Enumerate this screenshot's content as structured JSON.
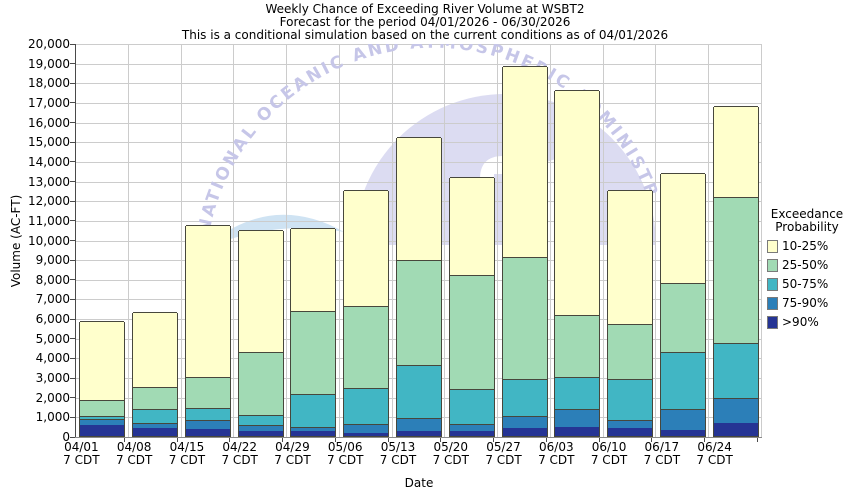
{
  "header": {
    "title_line1": "Weekly Chance of Exceeding River Volume at WSBT2",
    "title_line2": "Forecast for the period 04/01/2026 - 06/30/2026",
    "title_line3": "This is a conditional simulation based on the current conditions as of 04/01/2026"
  },
  "axes": {
    "y_label": "Volume (AC-FT)",
    "x_label": "Date",
    "y_tick_labels": [
      "0",
      "1,000",
      "2,000",
      "3,000",
      "4,000",
      "5,000",
      "6,000",
      "7,000",
      "8,000",
      "9,000",
      "10,000",
      "11,000",
      "12,000",
      "13,000",
      "14,000",
      "15,000",
      "16,000",
      "17,000",
      "18,000",
      "19,000",
      "20,000"
    ]
  },
  "legend": {
    "title_line1": "Exceedance",
    "title_line2": "Probability",
    "items": [
      {
        "label": "10-25%",
        "color": "#FFFFCC"
      },
      {
        "label": "25-50%",
        "color": "#A1DAB4"
      },
      {
        "label": "50-75%",
        "color": "#41B6C4"
      },
      {
        "label": "75-90%",
        "color": "#2C7FB8"
      },
      {
        "label": ">90%",
        "color": "#253494"
      }
    ]
  },
  "watermark": {
    "arc_text": "NATIONAL OCEANIC AND ATMOSPHERIC ADMINISTRATION",
    "arc_color": "#c6c6e8",
    "dome_color": "#dcdcf2",
    "wave_color": "#cfe3f3"
  },
  "chart_data": {
    "type": "bar",
    "stacked": true,
    "title": "Weekly Chance of Exceeding River Volume at WSBT2",
    "xlabel": "Date",
    "ylabel": "Volume (AC-FT)",
    "ylim": [
      0,
      20000
    ],
    "y_step": 1000,
    "grid": true,
    "legend_position": "right",
    "categories": [
      "04/01",
      "04/08",
      "04/15",
      "04/22",
      "04/29",
      "05/06",
      "05/13",
      "05/20",
      "05/27",
      "06/03",
      "06/10",
      "06/17",
      "06/24"
    ],
    "tick_sublabel": "7 CDT",
    "series": [
      {
        "name": ">90%",
        "color": "#253494",
        "values": [
          550,
          400,
          350,
          250,
          270,
          175,
          250,
          230,
          400,
          450,
          400,
          300,
          650
        ]
      },
      {
        "name": "75-90%",
        "color": "#2C7FB8",
        "values": [
          300,
          250,
          450,
          300,
          180,
          415,
          650,
          370,
          600,
          950,
          400,
          1100,
          1300
        ]
      },
      {
        "name": "50-75%",
        "color": "#41B6C4",
        "values": [
          150,
          720,
          650,
          500,
          1700,
          1840,
          2700,
          1800,
          1900,
          1600,
          2100,
          2900,
          2780
        ]
      },
      {
        "name": "25-50%",
        "color": "#A1DAB4",
        "values": [
          850,
          1130,
          1550,
          3250,
          4200,
          4170,
          5350,
          5800,
          6200,
          3150,
          2800,
          3500,
          7420
        ]
      },
      {
        "name": "10-25%",
        "color": "#FFFFCC",
        "values": [
          4000,
          3800,
          7750,
          6200,
          4250,
          5900,
          6250,
          5000,
          9750,
          11450,
          6800,
          5600,
          4650
        ]
      }
    ],
    "totals": [
      5850,
      6300,
      10750,
      10500,
      10600,
      12500,
      15200,
      13200,
      18850,
      17600,
      12500,
      13400,
      16800
    ]
  }
}
